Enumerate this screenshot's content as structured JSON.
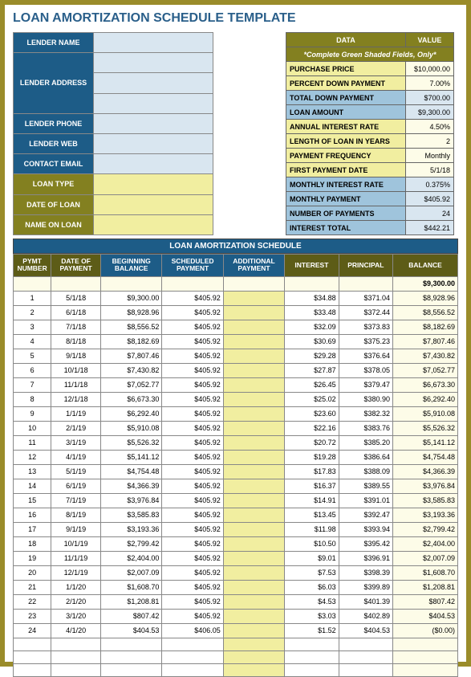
{
  "title": "LOAN AMORTIZATION SCHEDULE TEMPLATE",
  "lender": {
    "labels": {
      "name": "LENDER NAME",
      "address": "LENDER ADDRESS",
      "phone": "LENDER PHONE",
      "web": "LENDER WEB",
      "email": "CONTACT EMAIL",
      "loanType": "LOAN TYPE",
      "dateOfLoan": "DATE OF LOAN",
      "nameOnLoan": "NAME ON LOAN"
    }
  },
  "dataPanel": {
    "hdrData": "DATA",
    "hdrValue": "VALUE",
    "note": "*Complete Green Shaded Fields, Only*",
    "rows": [
      {
        "l": "PURCHASE PRICE",
        "v": "$10,000.00",
        "style": "y"
      },
      {
        "l": "PERCENT DOWN PAYMENT",
        "v": "7.00%",
        "style": "y"
      },
      {
        "l": "TOTAL DOWN PAYMENT",
        "v": "$700.00",
        "style": "b"
      },
      {
        "l": "LOAN AMOUNT",
        "v": "$9,300.00",
        "style": "b"
      },
      {
        "l": "ANNUAL INTEREST RATE",
        "v": "4.50%",
        "style": "y"
      },
      {
        "l": "LENGTH OF LOAN IN YEARS",
        "v": "2",
        "style": "y"
      },
      {
        "l": "PAYMENT FREQUENCY",
        "v": "Monthly",
        "style": "y"
      },
      {
        "l": "FIRST PAYMENT DATE",
        "v": "5/1/18",
        "style": "y"
      },
      {
        "l": "MONTHLY INTEREST RATE",
        "v": "0.375%",
        "style": "b"
      },
      {
        "l": "MONTHLY PAYMENT",
        "v": "$405.92",
        "style": "b"
      },
      {
        "l": "NUMBER OF PAYMENTS",
        "v": "24",
        "style": "b"
      },
      {
        "l": "INTEREST TOTAL",
        "v": "$442.21",
        "style": "b"
      }
    ]
  },
  "schedule": {
    "title": "LOAN AMORTIZATION SCHEDULE",
    "headers": [
      "PYMT NUMBER",
      "DATE OF PAYMENT",
      "BEGINNING BALANCE",
      "SCHEDULED PAYMENT",
      "ADDITIONAL PAYMENT",
      "INTEREST",
      "PRINCIPAL",
      "BALANCE"
    ],
    "startBalance": "$9,300.00",
    "rows": [
      {
        "n": "1",
        "d": "5/1/18",
        "bb": "$9,300.00",
        "sp": "$405.92",
        "ap": "",
        "i": "$34.88",
        "p": "$371.04",
        "b": "$8,928.96"
      },
      {
        "n": "2",
        "d": "6/1/18",
        "bb": "$8,928.96",
        "sp": "$405.92",
        "ap": "",
        "i": "$33.48",
        "p": "$372.44",
        "b": "$8,556.52"
      },
      {
        "n": "3",
        "d": "7/1/18",
        "bb": "$8,556.52",
        "sp": "$405.92",
        "ap": "",
        "i": "$32.09",
        "p": "$373.83",
        "b": "$8,182.69"
      },
      {
        "n": "4",
        "d": "8/1/18",
        "bb": "$8,182.69",
        "sp": "$405.92",
        "ap": "",
        "i": "$30.69",
        "p": "$375.23",
        "b": "$7,807.46"
      },
      {
        "n": "5",
        "d": "9/1/18",
        "bb": "$7,807.46",
        "sp": "$405.92",
        "ap": "",
        "i": "$29.28",
        "p": "$376.64",
        "b": "$7,430.82"
      },
      {
        "n": "6",
        "d": "10/1/18",
        "bb": "$7,430.82",
        "sp": "$405.92",
        "ap": "",
        "i": "$27.87",
        "p": "$378.05",
        "b": "$7,052.77"
      },
      {
        "n": "7",
        "d": "11/1/18",
        "bb": "$7,052.77",
        "sp": "$405.92",
        "ap": "",
        "i": "$26.45",
        "p": "$379.47",
        "b": "$6,673.30"
      },
      {
        "n": "8",
        "d": "12/1/18",
        "bb": "$6,673.30",
        "sp": "$405.92",
        "ap": "",
        "i": "$25.02",
        "p": "$380.90",
        "b": "$6,292.40"
      },
      {
        "n": "9",
        "d": "1/1/19",
        "bb": "$6,292.40",
        "sp": "$405.92",
        "ap": "",
        "i": "$23.60",
        "p": "$382.32",
        "b": "$5,910.08"
      },
      {
        "n": "10",
        "d": "2/1/19",
        "bb": "$5,910.08",
        "sp": "$405.92",
        "ap": "",
        "i": "$22.16",
        "p": "$383.76",
        "b": "$5,526.32"
      },
      {
        "n": "11",
        "d": "3/1/19",
        "bb": "$5,526.32",
        "sp": "$405.92",
        "ap": "",
        "i": "$20.72",
        "p": "$385.20",
        "b": "$5,141.12"
      },
      {
        "n": "12",
        "d": "4/1/19",
        "bb": "$5,141.12",
        "sp": "$405.92",
        "ap": "",
        "i": "$19.28",
        "p": "$386.64",
        "b": "$4,754.48"
      },
      {
        "n": "13",
        "d": "5/1/19",
        "bb": "$4,754.48",
        "sp": "$405.92",
        "ap": "",
        "i": "$17.83",
        "p": "$388.09",
        "b": "$4,366.39"
      },
      {
        "n": "14",
        "d": "6/1/19",
        "bb": "$4,366.39",
        "sp": "$405.92",
        "ap": "",
        "i": "$16.37",
        "p": "$389.55",
        "b": "$3,976.84"
      },
      {
        "n": "15",
        "d": "7/1/19",
        "bb": "$3,976.84",
        "sp": "$405.92",
        "ap": "",
        "i": "$14.91",
        "p": "$391.01",
        "b": "$3,585.83"
      },
      {
        "n": "16",
        "d": "8/1/19",
        "bb": "$3,585.83",
        "sp": "$405.92",
        "ap": "",
        "i": "$13.45",
        "p": "$392.47",
        "b": "$3,193.36"
      },
      {
        "n": "17",
        "d": "9/1/19",
        "bb": "$3,193.36",
        "sp": "$405.92",
        "ap": "",
        "i": "$11.98",
        "p": "$393.94",
        "b": "$2,799.42"
      },
      {
        "n": "18",
        "d": "10/1/19",
        "bb": "$2,799.42",
        "sp": "$405.92",
        "ap": "",
        "i": "$10.50",
        "p": "$395.42",
        "b": "$2,404.00"
      },
      {
        "n": "19",
        "d": "11/1/19",
        "bb": "$2,404.00",
        "sp": "$405.92",
        "ap": "",
        "i": "$9.01",
        "p": "$396.91",
        "b": "$2,007.09"
      },
      {
        "n": "20",
        "d": "12/1/19",
        "bb": "$2,007.09",
        "sp": "$405.92",
        "ap": "",
        "i": "$7.53",
        "p": "$398.39",
        "b": "$1,608.70"
      },
      {
        "n": "21",
        "d": "1/1/20",
        "bb": "$1,608.70",
        "sp": "$405.92",
        "ap": "",
        "i": "$6.03",
        "p": "$399.89",
        "b": "$1,208.81"
      },
      {
        "n": "22",
        "d": "2/1/20",
        "bb": "$1,208.81",
        "sp": "$405.92",
        "ap": "",
        "i": "$4.53",
        "p": "$401.39",
        "b": "$807.42"
      },
      {
        "n": "23",
        "d": "3/1/20",
        "bb": "$807.42",
        "sp": "$405.92",
        "ap": "",
        "i": "$3.03",
        "p": "$402.89",
        "b": "$404.53"
      },
      {
        "n": "24",
        "d": "4/1/20",
        "bb": "$404.53",
        "sp": "$406.05",
        "ap": "",
        "i": "$1.52",
        "p": "$404.53",
        "b": "($0.00)"
      }
    ]
  }
}
